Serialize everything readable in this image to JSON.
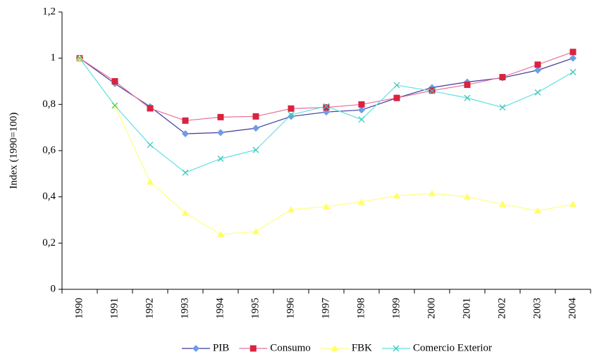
{
  "chart_data": {
    "type": "line",
    "y_label": "Index (1990=100)",
    "categories": [
      "1990",
      "1991",
      "1992",
      "1993",
      "1994",
      "1995",
      "1996",
      "1997",
      "1998",
      "1999",
      "2000",
      "2001",
      "2002",
      "2003",
      "2004"
    ],
    "series": [
      {
        "name": "PIB",
        "color": "#3b3b9c",
        "marker_color": "#6f9be8",
        "marker": "diamond",
        "values": [
          1.0,
          0.89,
          0.79,
          0.673,
          0.678,
          0.697,
          0.748,
          0.767,
          0.776,
          0.828,
          0.873,
          0.897,
          0.915,
          0.948,
          1.0
        ]
      },
      {
        "name": "Consumo",
        "color": "#e8729a",
        "marker_color": "#d9233f",
        "marker": "square",
        "values": [
          1.0,
          0.9,
          0.783,
          0.73,
          0.745,
          0.748,
          0.782,
          0.787,
          0.8,
          0.828,
          0.86,
          0.885,
          0.918,
          0.972,
          1.027
        ]
      },
      {
        "name": "FBK",
        "color": "#ffff80",
        "marker_color": "#ffff66",
        "marker": "triangle",
        "values": [
          1.0,
          0.795,
          0.465,
          0.33,
          0.238,
          0.25,
          0.345,
          0.358,
          0.378,
          0.405,
          0.415,
          0.4,
          0.368,
          0.34,
          0.368
        ]
      },
      {
        "name": "Comercio Exterior",
        "color": "#5fe0e6",
        "marker_color": "#40c8b8",
        "marker": "x",
        "values": [
          1.0,
          0.795,
          0.625,
          0.505,
          0.565,
          0.603,
          0.755,
          0.792,
          0.735,
          0.883,
          0.858,
          0.828,
          0.787,
          0.852,
          0.94
        ]
      }
    ],
    "ylim": [
      0,
      1.2
    ],
    "yticks": [
      0,
      {
        "value": 0.2,
        "label": "0,2"
      },
      {
        "value": 0.4,
        "label": "0,4"
      },
      {
        "value": 0.6,
        "label": "0,6"
      },
      {
        "value": 0.8,
        "label": "0,8"
      },
      1,
      {
        "value": 1.2,
        "label": "1,2"
      }
    ],
    "grid": false,
    "legend": "bottom"
  }
}
